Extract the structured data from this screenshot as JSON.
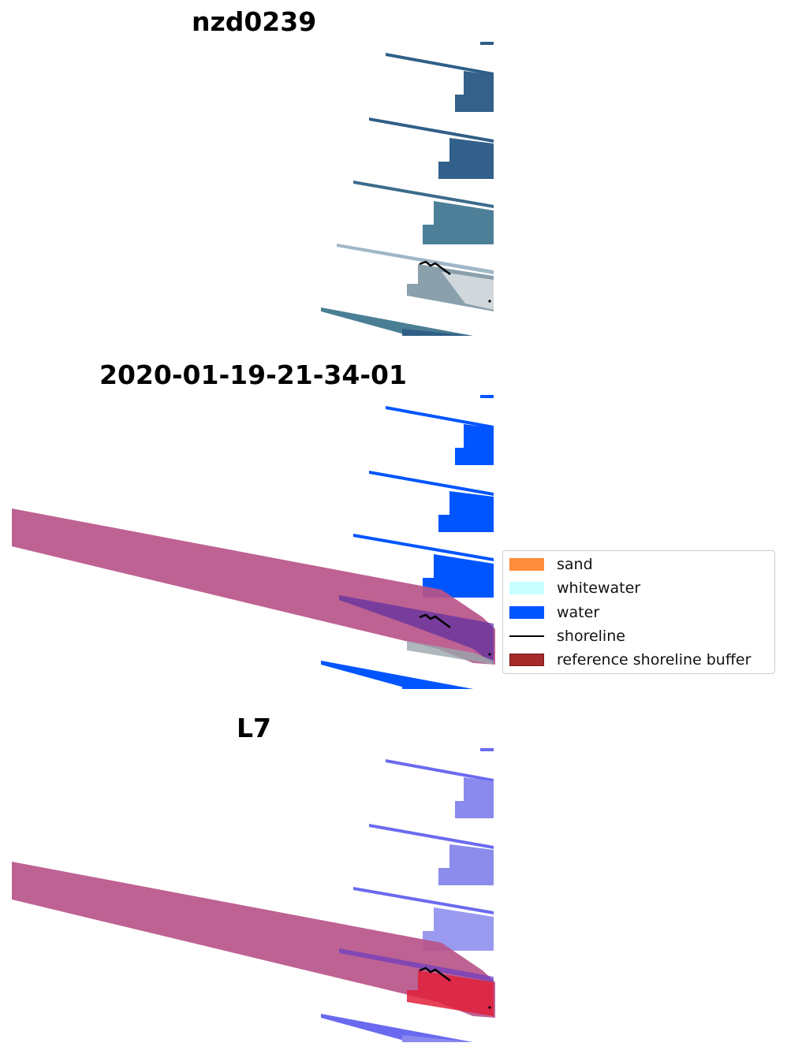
{
  "panels": [
    {
      "title": "nzd0239",
      "mode": "rgb"
    },
    {
      "title": "2020-01-19-21-34-01",
      "mode": "classified"
    },
    {
      "title": "L7",
      "mode": "index"
    }
  ],
  "legend": {
    "items": [
      {
        "label": "sand",
        "kind": "patch",
        "color": "#ff8c3a"
      },
      {
        "label": "whitewater",
        "kind": "patch",
        "color": "#c8ffff"
      },
      {
        "label": "water",
        "kind": "patch",
        "color": "#0055ff"
      },
      {
        "label": "shoreline",
        "kind": "line",
        "color": "#000000"
      },
      {
        "label": "reference shoreline buffer",
        "kind": "patch",
        "color": "#a52a2a"
      }
    ]
  },
  "colors": {
    "buffer": "#b8558a",
    "water_class": "#0055ff",
    "rgb_strip": "#2f5f86",
    "index_strip": "#6a6af0",
    "shoreline": "#000000"
  }
}
